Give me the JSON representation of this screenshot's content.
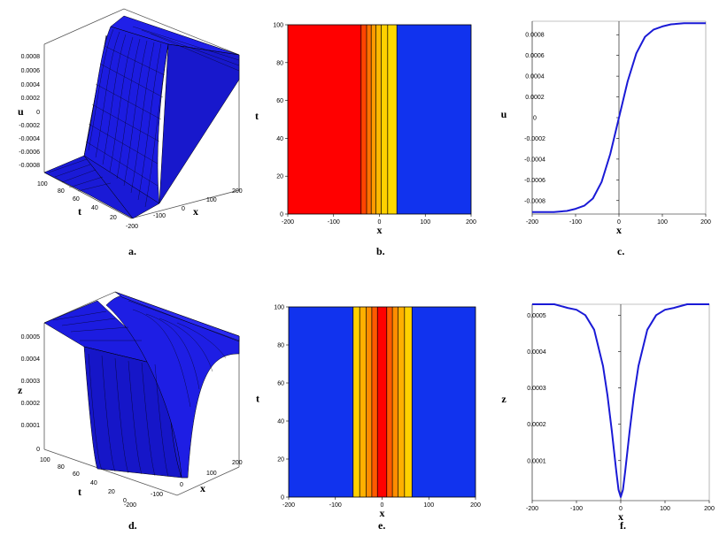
{
  "panel_labels": [
    "a.",
    "b.",
    "c.",
    "d.",
    "e.",
    "f."
  ],
  "colors": {
    "surface": "#1a1ad6",
    "contour_low": "#ff0000",
    "contour_mid": "#ff8c00",
    "contour_high": "#ffd000",
    "contour_bg": "#1133ee",
    "line": "#1a1ad6"
  },
  "chart_data": [
    {
      "id": "a",
      "type": "surface3d",
      "xlabel": "x",
      "ylabel": "t",
      "zlabel": "u",
      "x_ticks": [
        "-200",
        "-100",
        "0",
        "100",
        "200"
      ],
      "t_ticks": [
        "100",
        "80",
        "60",
        "40",
        "20"
      ],
      "z_ticks": [
        "0.0008",
        "0.0006",
        "0.0004",
        "0.0002",
        "0",
        "-0.0002",
        "-0.0004",
        "-0.0006",
        "-0.0008"
      ],
      "xlim": [
        -200,
        200
      ],
      "tlim": [
        0,
        100
      ],
      "zlim": [
        -0.0009,
        0.0009
      ]
    },
    {
      "id": "b",
      "type": "contour",
      "xlabel": "x",
      "ylabel": "t",
      "x_ticks": [
        "-200",
        "-100",
        "0",
        "100",
        "200"
      ],
      "y_ticks": [
        "0",
        "20",
        "40",
        "60",
        "80",
        "100"
      ],
      "xlim": [
        -200,
        200
      ],
      "ylim": [
        0,
        100
      ],
      "bands": [
        {
          "x0": -200,
          "x1": -40,
          "color": "#ff0000"
        },
        {
          "x0": -40,
          "x1": -28,
          "color": "#ff4400"
        },
        {
          "x0": -28,
          "x1": -18,
          "color": "#ff7000"
        },
        {
          "x0": -18,
          "x1": -8,
          "color": "#ff9a00"
        },
        {
          "x0": -8,
          "x1": 4,
          "color": "#ffb800"
        },
        {
          "x0": 4,
          "x1": 18,
          "color": "#ffd000"
        },
        {
          "x0": 18,
          "x1": 38,
          "color": "#ffd800"
        },
        {
          "x0": 38,
          "x1": 200,
          "color": "#1133ee"
        }
      ]
    },
    {
      "id": "c",
      "type": "line",
      "xlabel": "x",
      "ylabel": "u",
      "x_ticks": [
        -200,
        -100,
        0,
        100,
        200
      ],
      "y_ticks": [
        "0.0008",
        "0.0006",
        "0.0004",
        "0.0002",
        "0",
        "-0.0002",
        "-0.0004",
        "-0.0006",
        "-0.0008"
      ],
      "xlim": [
        -200,
        200
      ],
      "ylim": [
        -0.00093,
        0.00093
      ],
      "series": [
        {
          "x": [
            -200,
            -150,
            -120,
            -100,
            -80,
            -60,
            -40,
            -20,
            0,
            20,
            40,
            60,
            80,
            100,
            120,
            150,
            200
          ],
          "y": [
            -0.00091,
            -0.00091,
            -0.0009,
            -0.00088,
            -0.00085,
            -0.00078,
            -0.00062,
            -0.00035,
            0.0,
            0.00035,
            0.00062,
            0.00078,
            0.00085,
            0.00088,
            0.0009,
            0.00091,
            0.00091
          ]
        }
      ]
    },
    {
      "id": "d",
      "type": "surface3d",
      "xlabel": "x",
      "ylabel": "t",
      "zlabel": "z",
      "x_ticks": [
        "-200",
        "-100",
        "0",
        "100",
        "200"
      ],
      "t_ticks": [
        "100",
        "80",
        "60",
        "40",
        "20",
        "0"
      ],
      "z_ticks": [
        "0.0005",
        "0.0004",
        "0.0003",
        "0.0002",
        "0.0001",
        "0"
      ],
      "xlim": [
        -200,
        200
      ],
      "tlim": [
        0,
        100
      ],
      "zlim": [
        0,
        0.00055
      ]
    },
    {
      "id": "e",
      "type": "contour",
      "xlabel": "x",
      "ylabel": "t",
      "x_ticks": [
        "-200",
        "-100",
        "0",
        "100",
        "200"
      ],
      "y_ticks": [
        "0",
        "20",
        "40",
        "60",
        "80",
        "100"
      ],
      "xlim": [
        -200,
        200
      ],
      "ylim": [
        0,
        100
      ],
      "bands": [
        {
          "x0": -200,
          "x1": -62,
          "color": "#1133ee"
        },
        {
          "x0": -62,
          "x1": -48,
          "color": "#ffd000"
        },
        {
          "x0": -48,
          "x1": -34,
          "color": "#ffb000"
        },
        {
          "x0": -34,
          "x1": -22,
          "color": "#ff8c00"
        },
        {
          "x0": -22,
          "x1": -10,
          "color": "#ff5a00"
        },
        {
          "x0": -10,
          "x1": 10,
          "color": "#ff0000"
        },
        {
          "x0": 10,
          "x1": 22,
          "color": "#ff5a00"
        },
        {
          "x0": 22,
          "x1": 34,
          "color": "#ff8c00"
        },
        {
          "x0": 34,
          "x1": 48,
          "color": "#ffb000"
        },
        {
          "x0": 48,
          "x1": 64,
          "color": "#ffd000"
        },
        {
          "x0": 64,
          "x1": 200,
          "color": "#1133ee"
        }
      ]
    },
    {
      "id": "f",
      "type": "line",
      "xlabel": "x",
      "ylabel": "z",
      "x_ticks": [
        -200,
        -100,
        0,
        100,
        200
      ],
      "y_ticks": [
        "0.0005",
        "0.0004",
        "0.0003",
        "0.0002",
        "0.0001"
      ],
      "xlim": [
        -200,
        200
      ],
      "ylim": [
        -1e-05,
        0.00053
      ],
      "series": [
        {
          "x": [
            -200,
            -150,
            -120,
            -100,
            -80,
            -60,
            -40,
            -30,
            -20,
            -10,
            -5,
            0,
            5,
            10,
            20,
            30,
            40,
            60,
            80,
            100,
            120,
            150,
            200
          ],
          "y": [
            0.00053,
            0.00053,
            0.00052,
            0.000515,
            0.0005,
            0.00046,
            0.00036,
            0.00028,
            0.00018,
            7e-05,
            2e-05,
            0.0,
            2e-05,
            7e-05,
            0.00018,
            0.00028,
            0.00036,
            0.00046,
            0.0005,
            0.000515,
            0.00052,
            0.00053,
            0.00053
          ]
        }
      ]
    }
  ]
}
